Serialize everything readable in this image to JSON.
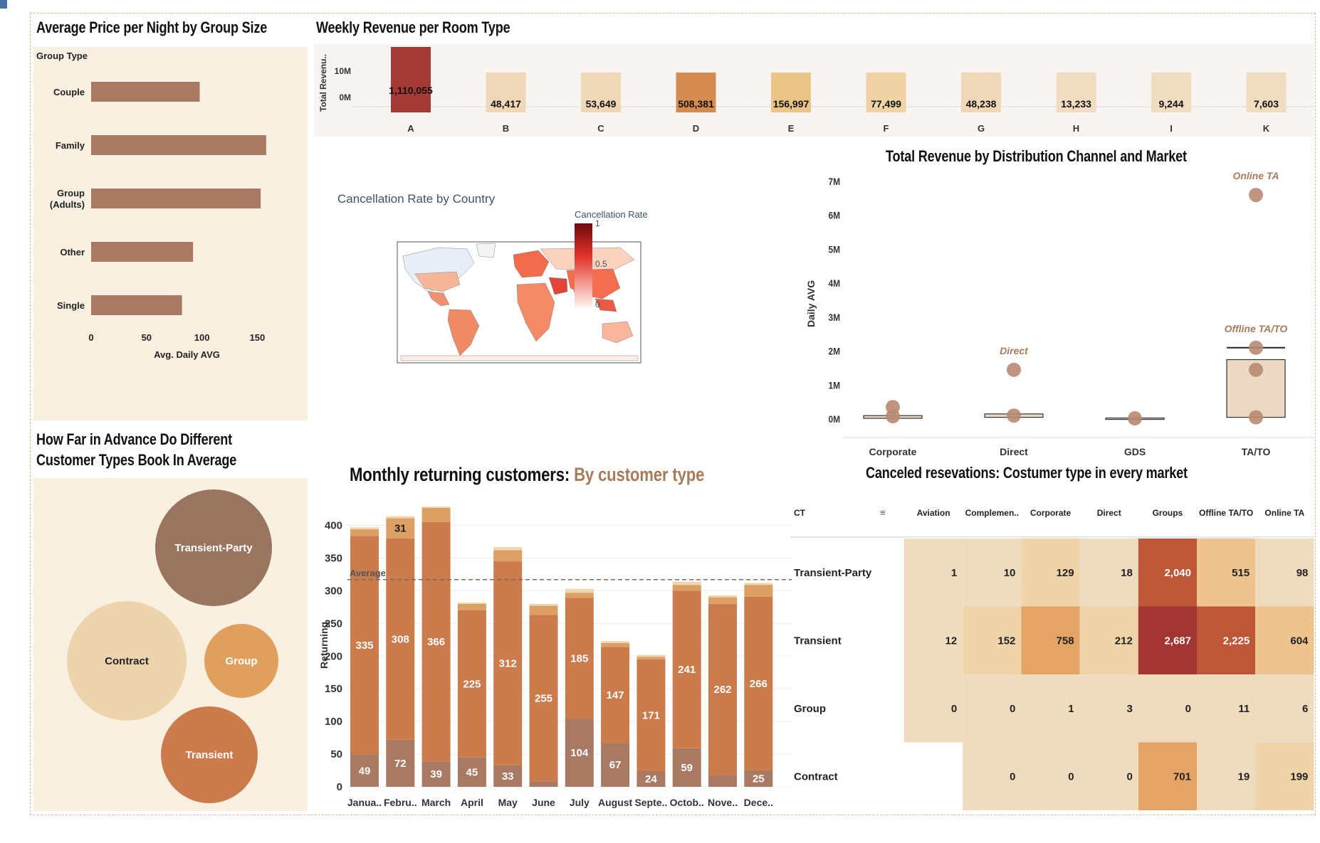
{
  "titles": {
    "group_price": "Average Price per Night by Group Size",
    "weekly_revenue": "Weekly Revenue per Room Type",
    "cancellation": "Cancellation Rate by Country",
    "channel_market": "Total Revenue by Distribution Channel and Market",
    "advance_line1": "How Far in Advance Do Different",
    "advance_line2": "Customer Types Book In Average",
    "returning_main": "Monthly returning customers: ",
    "returning_accent": "By customer type",
    "canceled": "Canceled resevations: Costumer type in every market"
  },
  "colors": {
    "panel_bg": "#f9f0e2",
    "bar_brown": "#a97a63",
    "accent_brown": "#a67c5b"
  },
  "chart_data": [
    {
      "id": "group_price",
      "type": "bar",
      "orientation": "horizontal",
      "ylabel": "Group Type",
      "xlabel": "Avg. Daily AVG",
      "categories": [
        "Couple",
        "Family",
        "Group (Adults)",
        "Other",
        "Single"
      ],
      "category_lines": [
        [
          "Couple"
        ],
        [
          "Family"
        ],
        [
          "Group",
          "(Adults)"
        ],
        [
          "Other"
        ],
        [
          "Single"
        ]
      ],
      "values": [
        98,
        158,
        153,
        92,
        82
      ],
      "xlim": [
        0,
        160
      ],
      "xticks": [
        0,
        50,
        100,
        150
      ]
    },
    {
      "id": "weekly_revenue",
      "type": "bar",
      "ylabel": "Total Revenu..",
      "yticks": [
        "10M",
        "0M"
      ],
      "categories": [
        "A",
        "B",
        "C",
        "D",
        "E",
        "F",
        "G",
        "H",
        "I",
        "K"
      ],
      "values": [
        1110055,
        48417,
        53649,
        508381,
        156997,
        77499,
        48238,
        13233,
        9244,
        7603
      ],
      "labels": [
        "1,110,055",
        "48,417",
        "53,649",
        "508,381",
        "156,997",
        "77,499",
        "48,238",
        "13,233",
        "9,244",
        "7,603"
      ],
      "colors": [
        "#a33a35",
        "#efd8b8",
        "#efd8b8",
        "#d68c50",
        "#ebc488",
        "#efd3a4",
        "#efd8b8",
        "#f0dcc0",
        "#f0dcc0",
        "#f0dcc0"
      ]
    },
    {
      "id": "cancellation",
      "type": "choropleth",
      "legend_title": "Cancellation Rate",
      "legend_ticks": [
        "1",
        "0.5",
        "0"
      ],
      "scale": [
        0,
        1
      ]
    },
    {
      "id": "channel_market",
      "type": "box",
      "ylabel": "Daily AVG",
      "categories": [
        "Corporate",
        "Direct",
        "GDS",
        "TA/TO"
      ],
      "yticks": [
        "0M",
        "1M",
        "2M",
        "3M",
        "4M",
        "5M",
        "6M",
        "7M"
      ],
      "ylim": [
        0,
        7
      ],
      "points": [
        {
          "x": "Corporate",
          "y": 0.35
        },
        {
          "x": "Corporate",
          "y": 0.08
        },
        {
          "x": "Direct",
          "y": 1.45
        },
        {
          "x": "Direct",
          "y": 0.1
        },
        {
          "x": "GDS",
          "y": 0.02
        },
        {
          "x": "TA/TO",
          "y": 6.6
        },
        {
          "x": "TA/TO",
          "y": 2.1
        },
        {
          "x": "TA/TO",
          "y": 1.45
        },
        {
          "x": "TA/TO",
          "y": 0.05
        }
      ],
      "annotations": [
        {
          "x": "Direct",
          "y": 1.45,
          "text": "Direct"
        },
        {
          "x": "TA/TO",
          "y": 2.1,
          "text": "Offline TA/TO"
        },
        {
          "x": "TA/TO",
          "y": 6.6,
          "text": "Online TA"
        }
      ],
      "boxes": [
        {
          "x": "Corporate",
          "q1": 0.02,
          "q3": 0.1,
          "median": 0.06
        },
        {
          "x": "Direct",
          "q1": 0.05,
          "q3": 0.15,
          "median": 0.1
        },
        {
          "x": "GDS",
          "q1": 0.01,
          "q3": 0.03,
          "median": 0.02
        },
        {
          "x": "TA/TO",
          "q1": 0.05,
          "q3": 1.75,
          "median": 1.75,
          "max": 2.1
        }
      ]
    },
    {
      "id": "advance",
      "type": "bubble",
      "bubbles": [
        {
          "label": "Transient-Party",
          "size": 82,
          "color": "#9a7560"
        },
        {
          "label": "Contract",
          "size": 84,
          "color": "#ecd4ad"
        },
        {
          "label": "Group",
          "size": 52,
          "color": "#dfa05e"
        },
        {
          "label": "Transient",
          "size": 68,
          "color": "#cb7b4c"
        }
      ]
    },
    {
      "id": "returning",
      "type": "bar",
      "stacked": true,
      "ylabel": "Returning",
      "yticks": [
        0,
        50,
        100,
        150,
        200,
        250,
        300,
        350,
        400
      ],
      "ylim": [
        0,
        430
      ],
      "average": 317,
      "average_label": "Average",
      "categories": [
        "Janua..",
        "Febru..",
        "March",
        "April",
        "May",
        "June",
        "July",
        "August",
        "Septe..",
        "Octob..",
        "Nove..",
        "Dece.."
      ],
      "series": [
        {
          "values": [
            49,
            72,
            39,
            45,
            33,
            8,
            104,
            67,
            24,
            59,
            18,
            25
          ],
          "color": "#a97a63"
        },
        {
          "values": [
            335,
            308,
            366,
            225,
            312,
            255,
            185,
            147,
            171,
            241,
            262,
            266
          ],
          "color": "#cb7b4c"
        },
        {
          "values": [
            10,
            31,
            22,
            10,
            17,
            14,
            8,
            6,
            4,
            9,
            10,
            18
          ],
          "color": "#dca064"
        },
        {
          "values": [
            3,
            3,
            2,
            2,
            5,
            3,
            6,
            3,
            3,
            5,
            3,
            3
          ],
          "color": "#efd7b0"
        }
      ],
      "labels": [
        {
          "series": 0,
          "values": [
            "49",
            "72",
            "39",
            "45",
            "33",
            "",
            "104",
            "67",
            "24",
            "59",
            "",
            "25"
          ]
        },
        {
          "series": 1,
          "values": [
            "335",
            "308",
            "366",
            "225",
            "312",
            "255",
            "185",
            "147",
            "171",
            "241",
            "262",
            "266"
          ]
        },
        {
          "series": 2,
          "values": [
            "",
            "31",
            "",
            "",
            "",
            "",
            "",
            "",
            "",
            "",
            "",
            ""
          ]
        }
      ]
    },
    {
      "id": "canceled",
      "type": "heatmap",
      "row_header": "CT",
      "columns": [
        "Aviation",
        "Complemen..",
        "Corporate",
        "Direct",
        "Groups",
        "Offline TA/TO",
        "Online TA"
      ],
      "rows": [
        "Transient-Party",
        "Transient",
        "Group",
        "Contract"
      ],
      "values": [
        [
          1,
          10,
          129,
          18,
          2040,
          515,
          98
        ],
        [
          12,
          152,
          758,
          212,
          2687,
          2225,
          604
        ],
        [
          0,
          0,
          1,
          3,
          0,
          11,
          6
        ],
        [
          null,
          0,
          0,
          0,
          701,
          19,
          199
        ]
      ],
      "labels": [
        [
          "1",
          "10",
          "129",
          "18",
          "2,040",
          "515",
          "98"
        ],
        [
          "12",
          "152",
          "758",
          "212",
          "2,687",
          "2,225",
          "604"
        ],
        [
          "0",
          "0",
          "1",
          "3",
          "0",
          "11",
          "6"
        ],
        [
          "",
          "0",
          "0",
          "0",
          "701",
          "19",
          "199"
        ]
      ]
    }
  ]
}
